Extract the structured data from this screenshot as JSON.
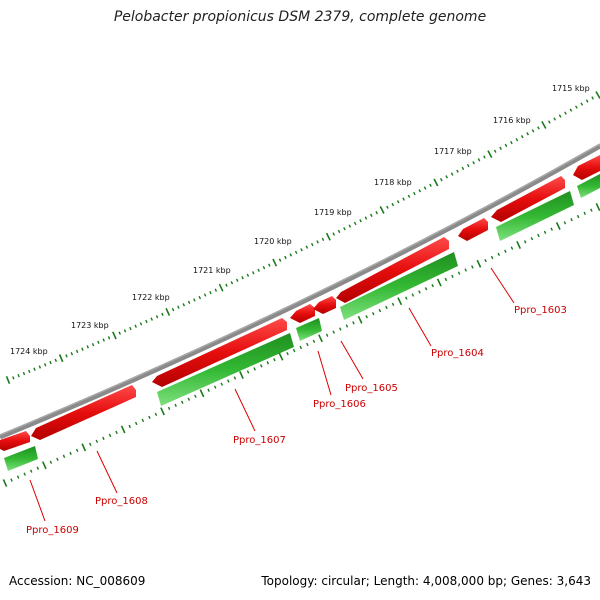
{
  "title": "Pelobacter propionicus DSM 2379, complete genome",
  "footer": {
    "accession": "Accession: NC_008609",
    "summary": "Topology: circular; Length: 4,008,000 bp; Genes: 3,643"
  },
  "map": {
    "colors": {
      "backbone": "#7a7a7a",
      "forward_gene": "#ee1111",
      "reverse_gene": "#22aa22",
      "tick": "#1a7a1a",
      "label": "#cc0000"
    },
    "kbp_labels": [
      "1715 kbp",
      "1716 kbp",
      "1717 kbp",
      "1718 kbp",
      "1719 kbp",
      "1720 kbp",
      "1721 kbp",
      "1722 kbp",
      "1723 kbp",
      "1724 kbp"
    ],
    "gene_labels": [
      "Ppro_1603",
      "Ppro_1604",
      "Ppro_1605",
      "Ppro_1606",
      "Ppro_1607",
      "Ppro_1608",
      "Ppro_1609"
    ]
  }
}
